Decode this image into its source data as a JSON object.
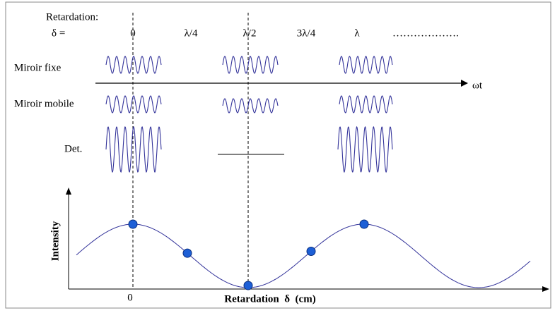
{
  "header": {
    "title": "Retardation:",
    "delta_label": "δ ="
  },
  "retardations": [
    "0",
    "λ/4",
    "λ/2",
    "3λ/4",
    "λ",
    "………………."
  ],
  "rows": [
    "Miroir fixe",
    "Miroir mobile",
    "Det."
  ],
  "time_axis": "ωt",
  "plot": {
    "y_label": "Intensity",
    "x_label": "Retardation  δ  (cm)",
    "origin_label": "0"
  }
}
